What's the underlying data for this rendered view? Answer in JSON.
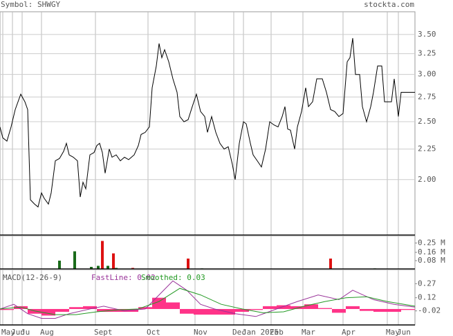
{
  "header": {
    "symbol": "Symbol: SHWGY",
    "site": "stockta.com"
  },
  "chart_data": [
    {
      "type": "line",
      "log_scale": true,
      "color": "#000000",
      "x": [
        0,
        2,
        5,
        8,
        11,
        15,
        18,
        20,
        22,
        25,
        27.5,
        30,
        32,
        35,
        37,
        40,
        43,
        46,
        48,
        50,
        53,
        56,
        58,
        60,
        62,
        65,
        68,
        70,
        72,
        74,
        76,
        79,
        81,
        84,
        87,
        90,
        93,
        97,
        100,
        102,
        105,
        108,
        110,
        113,
        115,
        117,
        119,
        122,
        125,
        128,
        130,
        133,
        136,
        139,
        142,
        145,
        148,
        150,
        153,
        156,
        159,
        162,
        165,
        168,
        170,
        173,
        176,
        178,
        181,
        183,
        186,
        189,
        192,
        195,
        198,
        201,
        204,
        206,
        208,
        210,
        213,
        215,
        218,
        221,
        223,
        226,
        229,
        233,
        236,
        239,
        242,
        245,
        248,
        251,
        253,
        255,
        257,
        260,
        262,
        265,
        268,
        270,
        273,
        276,
        278,
        281,
        283,
        285,
        288,
        290,
        300
      ],
      "values": [
        2.45,
        2.35,
        2.32,
        2.45,
        2.62,
        2.78,
        2.7,
        2.62,
        1.85,
        1.82,
        1.8,
        1.9,
        1.86,
        1.82,
        1.9,
        2.15,
        2.17,
        2.23,
        2.3,
        2.2,
        2.18,
        2.15,
        1.87,
        1.98,
        1.93,
        2.2,
        2.22,
        2.28,
        2.3,
        2.22,
        2.05,
        2.25,
        2.18,
        2.2,
        2.15,
        2.18,
        2.16,
        2.2,
        2.28,
        2.38,
        2.4,
        2.45,
        2.85,
        3.1,
        3.38,
        3.2,
        3.3,
        3.15,
        2.95,
        2.8,
        2.55,
        2.5,
        2.52,
        2.65,
        2.78,
        2.6,
        2.55,
        2.4,
        2.55,
        2.4,
        2.3,
        2.25,
        2.27,
        2.12,
        2.0,
        2.3,
        2.5,
        2.48,
        2.3,
        2.2,
        2.15,
        2.1,
        2.25,
        2.5,
        2.47,
        2.45,
        2.55,
        2.65,
        2.43,
        2.42,
        2.25,
        2.45,
        2.6,
        2.85,
        2.65,
        2.7,
        2.95,
        2.95,
        2.8,
        2.62,
        2.6,
        2.55,
        2.58,
        3.15,
        3.2,
        3.45,
        3.0,
        3.0,
        2.65,
        2.5,
        2.65,
        2.8,
        3.1,
        3.1,
        2.7,
        2.7,
        2.7,
        2.95,
        2.55,
        2.8,
        2.8
      ],
      "xlim": [
        0,
        300
      ],
      "xticks": [
        {
          "value": 2,
          "label": "May"
        },
        {
          "value": 9,
          "label": "Jun"
        },
        {
          "value": 16,
          "label": "Ju"
        },
        {
          "value": 30,
          "label": "Aug"
        },
        {
          "value": 69,
          "label": "Sept"
        },
        {
          "value": 107,
          "label": "Oct"
        },
        {
          "value": 141,
          "label": "Nov"
        },
        {
          "value": 169,
          "label": "Dec"
        },
        {
          "value": 176,
          "label": "Jan 2025"
        },
        {
          "value": 196,
          "label": "Feb"
        },
        {
          "value": 219,
          "label": "Mar"
        },
        {
          "value": 248,
          "label": "Apr"
        },
        {
          "value": 280,
          "label": "May"
        },
        {
          "value": 288,
          "label": "Jun"
        }
      ],
      "ylim": [
        1.615,
        3.82
      ],
      "yticks": [
        {
          "value": 3.5,
          "label": "3.50"
        },
        3.25,
        {
          "value": 3,
          "label": "3.00"
        },
        2.75,
        {
          "value": 2.5,
          "label": "2.50"
        },
        2.25,
        {
          "value": 2,
          "label": "2.00"
        }
      ],
      "grid": true
    },
    {
      "type": "bar",
      "x": [
        43,
        54,
        66,
        71,
        74,
        78,
        82,
        84,
        96,
        136,
        146,
        239,
        271
      ],
      "values": [
        0.08,
        0.17,
        0.02,
        0.03,
        0.27,
        0.03,
        0.15,
        0.01,
        0.01,
        0.1,
        0.005,
        0.1,
        0.005
      ],
      "colors": [
        "#1a6b1a",
        "#1a6b1a",
        "#1a6b1a",
        "#1a6b1a",
        "#dd1111",
        "#1a6b1a",
        "#dd1111",
        "#1a6b1a",
        "#dd1111",
        "#dd1111",
        "#1a6b1a",
        "#dd1111",
        "#1a6b1a"
      ],
      "ylim": [
        0,
        0.32
      ],
      "yticks": [
        {
          "value": 0.25,
          "label": "0.25 M"
        },
        {
          "value": 0.16,
          "label": "0.16 M"
        },
        {
          "value": 0.08,
          "label": "0.08 M"
        }
      ]
    },
    {
      "type": "macd",
      "title": "MACD(12-26-9)",
      "histogram": {
        "color": "#ff3388",
        "x": [
          0,
          10,
          20,
          30,
          40,
          50,
          60,
          70,
          80,
          90,
          100,
          110,
          120,
          130,
          140,
          150,
          160,
          170,
          180,
          190,
          200,
          210,
          220,
          230,
          240,
          250,
          260,
          270,
          280,
          290
        ],
        "values": [
          -0.01,
          0.03,
          -0.05,
          -0.07,
          -0.03,
          0.02,
          0.03,
          -0.03,
          -0.03,
          -0.03,
          0.02,
          0.12,
          0.07,
          -0.05,
          -0.06,
          -0.06,
          -0.06,
          -0.03,
          -0.01,
          0.03,
          0.04,
          0.03,
          0.05,
          0.01,
          -0.04,
          0.03,
          -0.02,
          -0.03,
          -0.03,
          -0.01
        ]
      },
      "series": [
        {
          "name": "FastLine: 0.02",
          "color": "#993399",
          "x": [
            0,
            10,
            20,
            30,
            40,
            50,
            65,
            75,
            90,
            105,
            115,
            125,
            135,
            145,
            155,
            170,
            185,
            200,
            215,
            230,
            245,
            255,
            270,
            285,
            300
          ],
          "values": [
            0.0,
            0.05,
            -0.05,
            -0.1,
            -0.1,
            -0.05,
            0.0,
            0.03,
            -0.02,
            0.0,
            0.15,
            0.3,
            0.2,
            0.05,
            0.0,
            -0.05,
            -0.08,
            0.0,
            0.08,
            0.15,
            0.1,
            0.2,
            0.1,
            0.05,
            0.02
          ]
        },
        {
          "name": "Smoothed: 0.03",
          "color": "#229922",
          "x": [
            0,
            15,
            25,
            40,
            55,
            70,
            85,
            100,
            115,
            130,
            145,
            160,
            175,
            190,
            205,
            220,
            235,
            250,
            265,
            280,
            300
          ],
          "values": [
            0.0,
            0.02,
            -0.02,
            -0.06,
            -0.06,
            -0.03,
            -0.01,
            0.0,
            0.08,
            0.22,
            0.15,
            0.05,
            0.0,
            -0.04,
            -0.03,
            0.03,
            0.08,
            0.12,
            0.13,
            0.08,
            0.03
          ]
        }
      ],
      "ylim": [
        -0.17,
        0.42
      ],
      "yticks": [
        0.27,
        0.12,
        -0.02
      ]
    }
  ]
}
